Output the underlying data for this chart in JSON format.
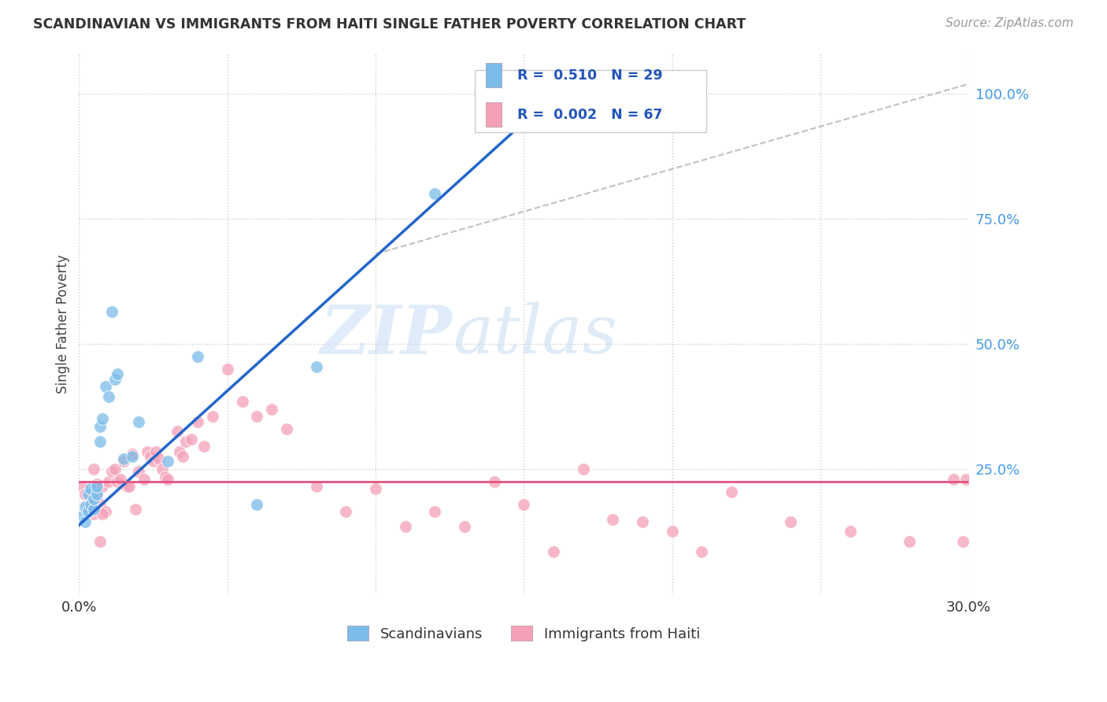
{
  "title": "SCANDINAVIAN VS IMMIGRANTS FROM HAITI SINGLE FATHER POVERTY CORRELATION CHART",
  "source": "Source: ZipAtlas.com",
  "ylabel": "Single Father Poverty",
  "ytick_labels": [
    "100.0%",
    "75.0%",
    "50.0%",
    "25.0%"
  ],
  "ytick_values": [
    1.0,
    0.75,
    0.5,
    0.25
  ],
  "xlim": [
    0.0,
    0.3
  ],
  "ylim": [
    0.0,
    1.08
  ],
  "scand_color": "#7bbce8",
  "haiti_color": "#f4a0b8",
  "scand_line_color": "#2266cc",
  "haiti_line_color": "#e05580",
  "background_color": "#ffffff",
  "watermark_zip": "ZIP",
  "watermark_atlas": "atlas",
  "grid_color": "#cccccc",
  "scand_x": [
    0.001,
    0.002,
    0.002,
    0.003,
    0.003,
    0.004,
    0.004,
    0.005,
    0.005,
    0.006,
    0.006,
    0.007,
    0.007,
    0.008,
    0.009,
    0.01,
    0.011,
    0.012,
    0.013,
    0.015,
    0.018,
    0.02,
    0.03,
    0.04,
    0.06,
    0.08,
    0.12,
    0.15,
    0.2
  ],
  "scand_y": [
    0.155,
    0.145,
    0.175,
    0.165,
    0.2,
    0.18,
    0.21,
    0.17,
    0.19,
    0.2,
    0.215,
    0.305,
    0.335,
    0.35,
    0.415,
    0.395,
    0.565,
    0.43,
    0.44,
    0.27,
    0.275,
    0.345,
    0.265,
    0.475,
    0.18,
    0.455,
    0.8,
    0.97,
    0.97
  ],
  "haiti_x": [
    0.001,
    0.002,
    0.003,
    0.004,
    0.005,
    0.006,
    0.007,
    0.008,
    0.009,
    0.01,
    0.011,
    0.012,
    0.013,
    0.014,
    0.015,
    0.016,
    0.017,
    0.018,
    0.019,
    0.02,
    0.022,
    0.023,
    0.024,
    0.025,
    0.026,
    0.027,
    0.028,
    0.029,
    0.03,
    0.033,
    0.034,
    0.035,
    0.036,
    0.038,
    0.04,
    0.042,
    0.045,
    0.05,
    0.055,
    0.06,
    0.065,
    0.07,
    0.08,
    0.09,
    0.1,
    0.11,
    0.12,
    0.13,
    0.14,
    0.15,
    0.16,
    0.17,
    0.18,
    0.19,
    0.2,
    0.21,
    0.22,
    0.24,
    0.26,
    0.28,
    0.295,
    0.298,
    0.299,
    0.005,
    0.006,
    0.007,
    0.008
  ],
  "haiti_y": [
    0.215,
    0.2,
    0.18,
    0.175,
    0.16,
    0.205,
    0.18,
    0.215,
    0.165,
    0.225,
    0.245,
    0.25,
    0.225,
    0.23,
    0.265,
    0.215,
    0.215,
    0.28,
    0.17,
    0.245,
    0.23,
    0.285,
    0.275,
    0.265,
    0.285,
    0.27,
    0.25,
    0.235,
    0.23,
    0.325,
    0.285,
    0.275,
    0.305,
    0.31,
    0.345,
    0.295,
    0.355,
    0.45,
    0.385,
    0.355,
    0.37,
    0.33,
    0.215,
    0.165,
    0.21,
    0.135,
    0.165,
    0.135,
    0.225,
    0.18,
    0.085,
    0.25,
    0.15,
    0.145,
    0.125,
    0.085,
    0.205,
    0.145,
    0.125,
    0.105,
    0.23,
    0.105,
    0.23,
    0.25,
    0.22,
    0.105,
    0.16
  ],
  "scand_line_x": [
    0.0,
    0.155
  ],
  "scand_line_y": [
    0.138,
    0.97
  ],
  "haiti_line_x": [
    0.0,
    0.3
  ],
  "haiti_line_y": [
    0.225,
    0.225
  ],
  "diag_line_x": [
    0.1,
    0.3
  ],
  "diag_line_y": [
    0.68,
    1.02
  ]
}
